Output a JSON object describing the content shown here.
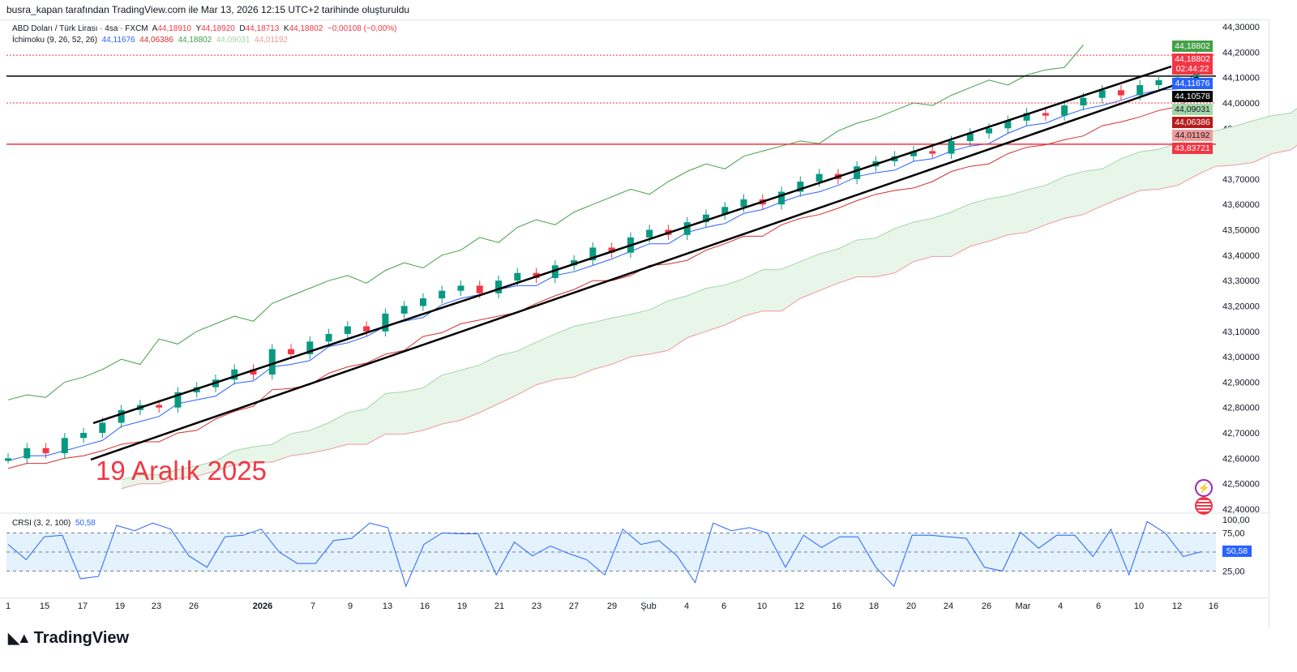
{
  "credit": "busra_kapan tarafından TradingView.com ile Mar 13, 2026 12:15 UTC+2 tarihinde oluşturuldu",
  "legend": {
    "symbol": "ABD Doları / Türk Lirası · 4sa · FXCM",
    "open_label": "A",
    "open": "44,18910",
    "high_label": "Y",
    "high": "44,18920",
    "low_label": "D",
    "low": "44,18713",
    "close_label": "K",
    "close": "44,18802",
    "change": "−0,00108 (−0,00%)",
    "ichimoku_label": "İchimoku (9, 26, 52, 26)",
    "tenkan": "44,11676",
    "kijun": "44,06386",
    "chikou": "44,18802",
    "span_a": "44,09031",
    "span_b": "44,01192"
  },
  "price_badges": [
    {
      "text": "44,18802",
      "color": "#43a047",
      "price": 44.18802
    },
    {
      "text": "44,18802",
      "sub": "02:44:22",
      "color": "#f23645",
      "price": 44.18802
    },
    {
      "text": "44,11676",
      "color": "#2962ff",
      "price": 44.11676
    },
    {
      "text": "44,10578",
      "color": "#000000",
      "price": 44.10578
    },
    {
      "text": "44,09031",
      "color": "#a5d6a7",
      "price": 44.09031
    },
    {
      "text": "44,06386",
      "color": "#b71c1c",
      "price": 44.06386
    },
    {
      "text": "44,01192",
      "color": "#ef9a9a",
      "price": 44.01192
    },
    {
      "text": "43,83721",
      "color": "#f23645",
      "price": 43.83721
    }
  ],
  "annotation": "19 Aralık 2025",
  "crsi": {
    "label": "CRSI (3, 2, 100)",
    "value": "50,58",
    "axis": [
      "100,00",
      "75,00",
      "25,00"
    ],
    "badge": "50,58"
  },
  "brand": "TradingView",
  "chart_data": {
    "type": "candlestick",
    "title": "ABD Doları / Türk Lirası · 4sa · FXCM",
    "ylim": [
      42.4,
      44.3
    ],
    "y_ticks": [
      "44,30000",
      "44,20000",
      "44,10000",
      "44,00000",
      "43,90000",
      "43,80000",
      "43,70000",
      "43,60000",
      "43,50000",
      "43,40000",
      "43,30000",
      "43,20000",
      "43,10000",
      "43,00000",
      "42,90000",
      "42,80000",
      "42,70000",
      "42,60000",
      "42,50000",
      "42,40000"
    ],
    "x_ticks": [
      "1",
      "15",
      "17",
      "19",
      "23",
      "26",
      "2026",
      "7",
      "9",
      "13",
      "16",
      "19",
      "21",
      "23",
      "27",
      "29",
      "Şub",
      "4",
      "6",
      "10",
      "12",
      "16",
      "18",
      "20",
      "24",
      "26",
      "Mar",
      "4",
      "6",
      "10",
      "12",
      "16"
    ],
    "close": [
      42.6,
      42.64,
      42.62,
      42.68,
      42.7,
      42.74,
      42.79,
      42.81,
      42.8,
      42.86,
      42.88,
      42.91,
      42.95,
      42.93,
      43.03,
      43.01,
      43.06,
      43.09,
      43.12,
      43.1,
      43.17,
      43.2,
      43.23,
      43.26,
      43.28,
      43.25,
      43.3,
      43.33,
      43.31,
      43.36,
      43.38,
      43.43,
      43.41,
      43.47,
      43.5,
      43.48,
      43.53,
      43.56,
      43.59,
      43.62,
      43.6,
      43.65,
      43.69,
      43.72,
      43.7,
      43.75,
      43.77,
      43.79,
      43.81,
      43.8,
      43.85,
      43.88,
      43.9,
      43.93,
      43.96,
      43.95,
      43.99,
      44.02,
      44.05,
      44.03,
      44.07,
      44.09,
      44.1,
      44.188
    ],
    "horizontal_lines": [
      {
        "price": 44.10578,
        "color": "#000000"
      },
      {
        "price": 43.83721,
        "color": "#f23645"
      },
      {
        "price": 44.18802,
        "color": "#f23645",
        "style": "dotted"
      },
      {
        "price": 44.0,
        "color": "#f23645",
        "style": "dotted"
      }
    ],
    "crsi": {
      "ylim": [
        0,
        100
      ],
      "bands": [
        25,
        50,
        75
      ],
      "values": [
        60,
        40,
        70,
        72,
        15,
        18,
        85,
        78,
        88,
        80,
        45,
        30,
        70,
        72,
        80,
        50,
        35,
        35,
        65,
        68,
        88,
        82,
        5,
        60,
        75,
        74,
        74,
        20,
        63,
        45,
        58,
        48,
        40,
        20,
        80,
        60,
        65,
        45,
        10,
        88,
        78,
        82,
        75,
        30,
        72,
        56,
        70,
        70,
        30,
        5,
        72,
        72,
        70,
        68,
        30,
        25,
        76,
        55,
        72,
        72,
        44,
        80,
        20,
        90,
        75,
        44,
        50.58
      ]
    },
    "colors": {
      "up": "#089981",
      "down": "#f23645",
      "tenkan": "#2962ff",
      "kijun": "#d32f2f",
      "chikou": "#43a047",
      "span_a": "#a5d6a7",
      "span_b": "#ef9a9a",
      "cloud": "#e8f5e9",
      "crsi": "#2962ff",
      "crsi_band": "#e3f2fd"
    }
  }
}
